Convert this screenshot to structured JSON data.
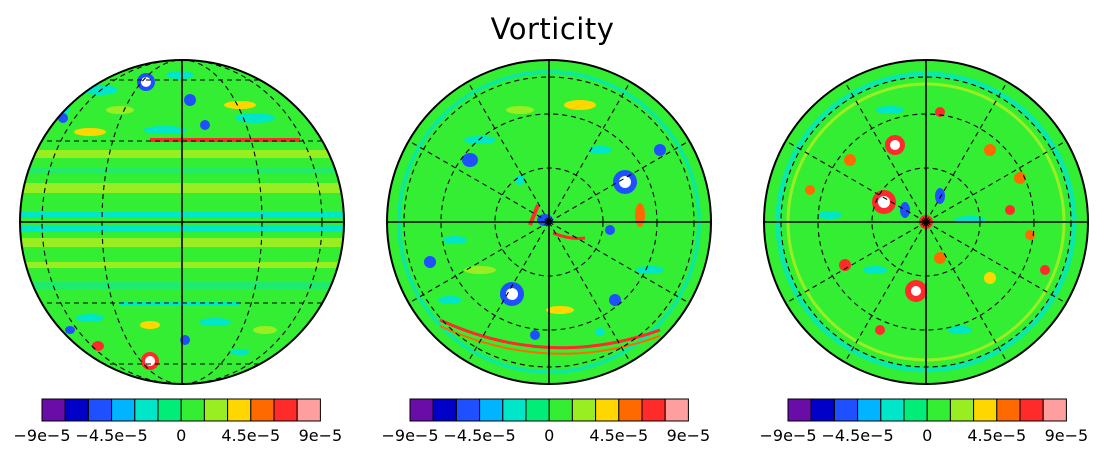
{
  "figure": {
    "title": "Vorticity"
  },
  "colorbar": {
    "colors": [
      "#6a0da8",
      "#0000c8",
      "#1e50ff",
      "#00b4ff",
      "#00e6c8",
      "#00ee77",
      "#33ee33",
      "#99ee22",
      "#ffd700",
      "#ff6a00",
      "#ff2a2a",
      "#ff9e9e"
    ],
    "tick_labels": [
      "−9e−5",
      "−4.5e−5",
      "0",
      "4.5e−5",
      "9e−5"
    ]
  },
  "globes": [
    {
      "name": "equatorial-view"
    },
    {
      "name": "north-polar-view"
    },
    {
      "name": "south-polar-view"
    }
  ],
  "field_colors": {
    "background": "#33ee33",
    "light": "#99ee22",
    "cyan": "#00e6c8",
    "blue": "#1e50ff",
    "dark_blue": "#0000c8",
    "yellow": "#ffd700",
    "orange": "#ff6a00",
    "red": "#ff2a2a",
    "pink": "#ff9e9e"
  }
}
